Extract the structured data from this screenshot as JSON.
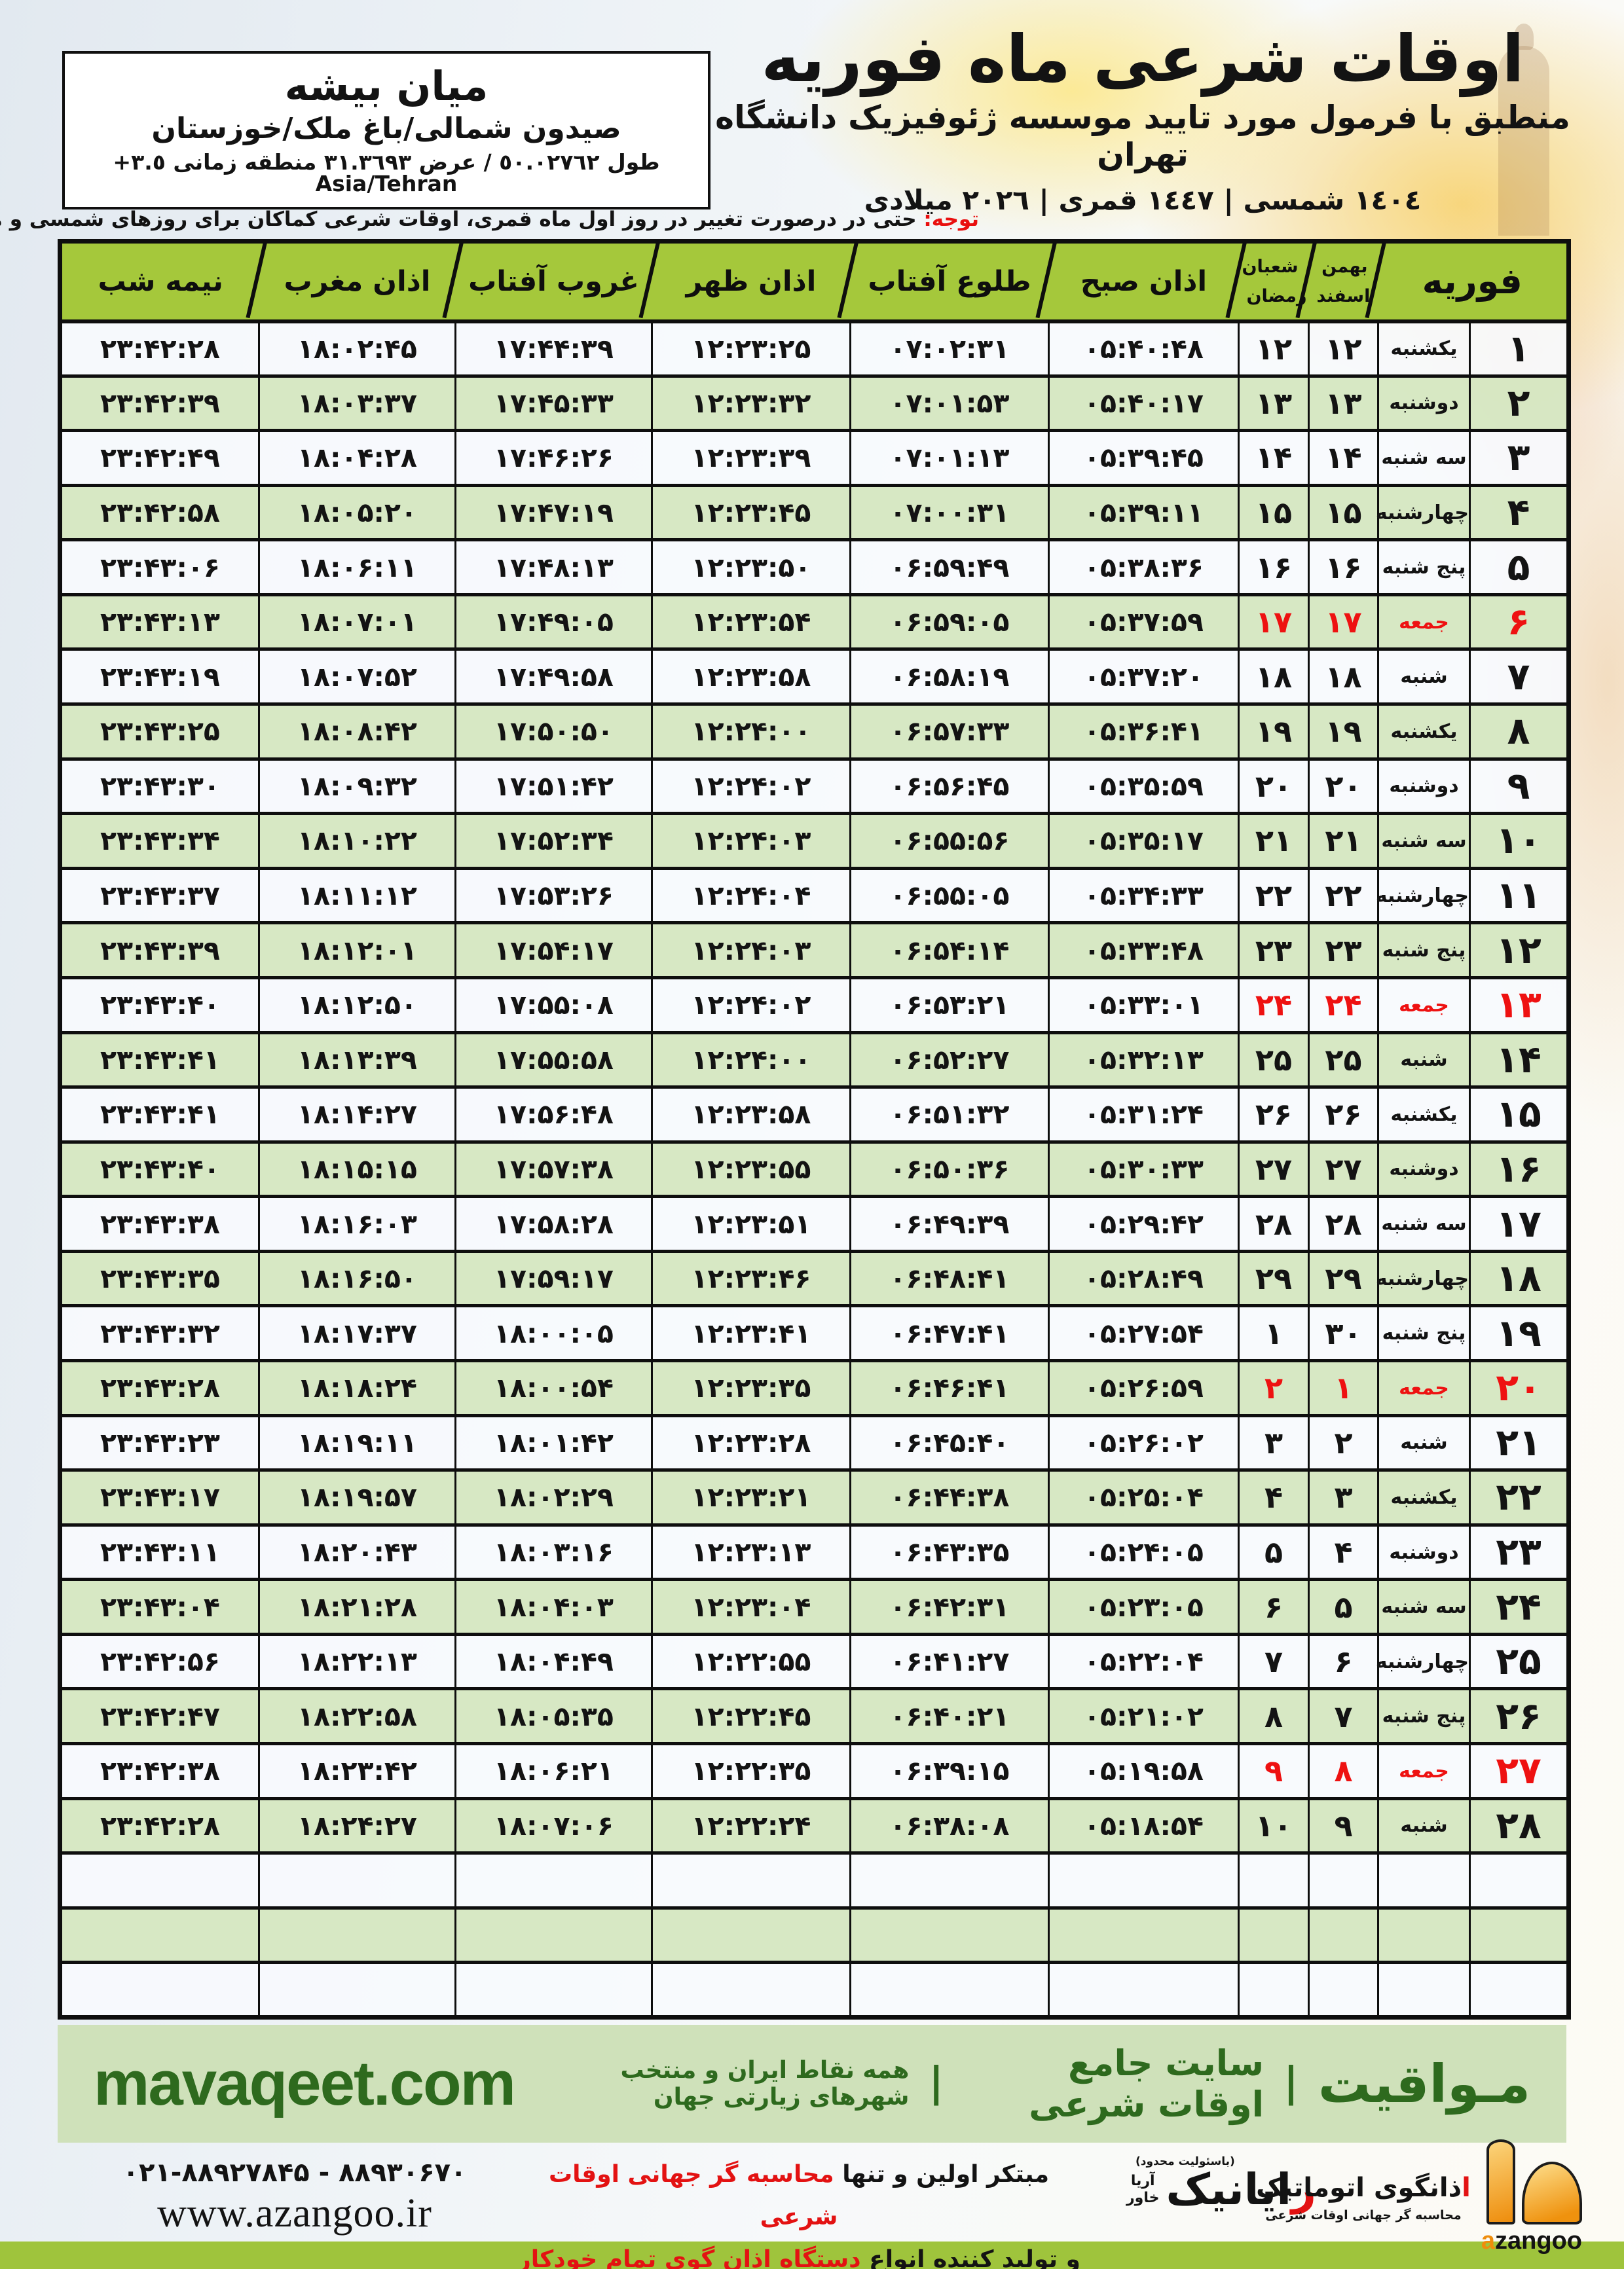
{
  "colors": {
    "header_green": "#a5c83b",
    "row_green": "#d6e7c2",
    "row_light": "#f7fafd",
    "friday_red": "#ee1111",
    "band_green_bg": "#cfe1ba",
    "band_green_text": "#2e6a1e",
    "bottom_bar_green": "#9fc43c",
    "logo_orange": "#ee8d0c"
  },
  "location_box": {
    "city": "میان بیشه",
    "region": "صیدون شمالی/باغ ملک/خوزستان",
    "coords": "طول ٥٠.٠٢٧٦٢ / عرض ٣١.٣٦٩٣ منطقه زمانی ٣.٥+ Asia/Tehran"
  },
  "title_block": {
    "title": "اوقات شرعی ماه فوریه",
    "subtitle": "منطبق با فرمول مورد تایید موسسه ژئوفیزیک دانشگاه تهران",
    "years": "١٤٠٤ شمسی | ١٤٤٧ قمری | ٢٠٢٦ میلادی"
  },
  "note": {
    "label": "توجه:",
    "text": " حتی در درصورت تغییر در روز اول ماه قمری، اوقات شرعی کماکان برای روزهای شمسی و میلادی معتبر است."
  },
  "table": {
    "headers": {
      "february": "فوریه",
      "jalali_top": "بهمن",
      "jalali_bottom": "اسفند",
      "hijri_top": "شعبان",
      "hijri_bottom": "رمضان",
      "fajr": "اذان صبح",
      "sunrise": "طلوع آفتاب",
      "dhuhr": "اذان ظهر",
      "sunset": "غروب آفتاب",
      "maghrib": "اذان مغرب",
      "midnight": "نیمه شب"
    },
    "empty_rows": 3,
    "rows": [
      {
        "day": 1,
        "weekday": "یکشنبه",
        "jalali_day": 12,
        "hijri_day": 12,
        "friday": false,
        "fajr": "05:40:48",
        "sunrise": "07:02:31",
        "dhuhr": "12:23:25",
        "sunset": "17:44:39",
        "maghrib": "18:02:45",
        "midnight": "23:42:28"
      },
      {
        "day": 2,
        "weekday": "دوشنبه",
        "jalali_day": 13,
        "hijri_day": 13,
        "friday": false,
        "fajr": "05:40:17",
        "sunrise": "07:01:53",
        "dhuhr": "12:23:32",
        "sunset": "17:45:33",
        "maghrib": "18:03:37",
        "midnight": "23:42:39"
      },
      {
        "day": 3,
        "weekday": "سه شنبه",
        "jalali_day": 14,
        "hijri_day": 14,
        "friday": false,
        "fajr": "05:39:45",
        "sunrise": "07:01:13",
        "dhuhr": "12:23:39",
        "sunset": "17:46:26",
        "maghrib": "18:04:28",
        "midnight": "23:42:49"
      },
      {
        "day": 4,
        "weekday": "چهارشنبه",
        "jalali_day": 15,
        "hijri_day": 15,
        "friday": false,
        "fajr": "05:39:11",
        "sunrise": "07:00:31",
        "dhuhr": "12:23:45",
        "sunset": "17:47:19",
        "maghrib": "18:05:20",
        "midnight": "23:42:58"
      },
      {
        "day": 5,
        "weekday": "پنج شنبه",
        "jalali_day": 16,
        "hijri_day": 16,
        "friday": false,
        "fajr": "05:38:36",
        "sunrise": "06:59:49",
        "dhuhr": "12:23:50",
        "sunset": "17:48:13",
        "maghrib": "18:06:11",
        "midnight": "23:43:06"
      },
      {
        "day": 6,
        "weekday": "جمعه",
        "jalali_day": 17,
        "hijri_day": 17,
        "friday": true,
        "fajr": "05:37:59",
        "sunrise": "06:59:05",
        "dhuhr": "12:23:54",
        "sunset": "17:49:05",
        "maghrib": "18:07:01",
        "midnight": "23:43:13"
      },
      {
        "day": 7,
        "weekday": "شنبه",
        "jalali_day": 18,
        "hijri_day": 18,
        "friday": false,
        "fajr": "05:37:20",
        "sunrise": "06:58:19",
        "dhuhr": "12:23:58",
        "sunset": "17:49:58",
        "maghrib": "18:07:52",
        "midnight": "23:43:19"
      },
      {
        "day": 8,
        "weekday": "یکشنبه",
        "jalali_day": 19,
        "hijri_day": 19,
        "friday": false,
        "fajr": "05:36:41",
        "sunrise": "06:57:33",
        "dhuhr": "12:24:00",
        "sunset": "17:50:50",
        "maghrib": "18:08:42",
        "midnight": "23:43:25"
      },
      {
        "day": 9,
        "weekday": "دوشنبه",
        "jalali_day": 20,
        "hijri_day": 20,
        "friday": false,
        "fajr": "05:35:59",
        "sunrise": "06:56:45",
        "dhuhr": "12:24:02",
        "sunset": "17:51:42",
        "maghrib": "18:09:32",
        "midnight": "23:43:30"
      },
      {
        "day": 10,
        "weekday": "سه شنبه",
        "jalali_day": 21,
        "hijri_day": 21,
        "friday": false,
        "fajr": "05:35:17",
        "sunrise": "06:55:56",
        "dhuhr": "12:24:03",
        "sunset": "17:52:34",
        "maghrib": "18:10:22",
        "midnight": "23:43:34"
      },
      {
        "day": 11,
        "weekday": "چهارشنبه",
        "jalali_day": 22,
        "hijri_day": 22,
        "friday": false,
        "fajr": "05:34:33",
        "sunrise": "06:55:05",
        "dhuhr": "12:24:04",
        "sunset": "17:53:26",
        "maghrib": "18:11:12",
        "midnight": "23:43:37"
      },
      {
        "day": 12,
        "weekday": "پنج شنبه",
        "jalali_day": 23,
        "hijri_day": 23,
        "friday": false,
        "fajr": "05:33:48",
        "sunrise": "06:54:14",
        "dhuhr": "12:24:03",
        "sunset": "17:54:17",
        "maghrib": "18:12:01",
        "midnight": "23:43:39"
      },
      {
        "day": 13,
        "weekday": "جمعه",
        "jalali_day": 24,
        "hijri_day": 24,
        "friday": true,
        "fajr": "05:33:01",
        "sunrise": "06:53:21",
        "dhuhr": "12:24:02",
        "sunset": "17:55:08",
        "maghrib": "18:12:50",
        "midnight": "23:43:40"
      },
      {
        "day": 14,
        "weekday": "شنبه",
        "jalali_day": 25,
        "hijri_day": 25,
        "friday": false,
        "fajr": "05:32:13",
        "sunrise": "06:52:27",
        "dhuhr": "12:24:00",
        "sunset": "17:55:58",
        "maghrib": "18:13:39",
        "midnight": "23:43:41"
      },
      {
        "day": 15,
        "weekday": "یکشنبه",
        "jalali_day": 26,
        "hijri_day": 26,
        "friday": false,
        "fajr": "05:31:24",
        "sunrise": "06:51:32",
        "dhuhr": "12:23:58",
        "sunset": "17:56:48",
        "maghrib": "18:14:27",
        "midnight": "23:43:41"
      },
      {
        "day": 16,
        "weekday": "دوشنبه",
        "jalali_day": 27,
        "hijri_day": 27,
        "friday": false,
        "fajr": "05:30:33",
        "sunrise": "06:50:36",
        "dhuhr": "12:23:55",
        "sunset": "17:57:38",
        "maghrib": "18:15:15",
        "midnight": "23:43:40"
      },
      {
        "day": 17,
        "weekday": "سه شنبه",
        "jalali_day": 28,
        "hijri_day": 28,
        "friday": false,
        "fajr": "05:29:42",
        "sunrise": "06:49:39",
        "dhuhr": "12:23:51",
        "sunset": "17:58:28",
        "maghrib": "18:16:03",
        "midnight": "23:43:38"
      },
      {
        "day": 18,
        "weekday": "چهارشنبه",
        "jalali_day": 29,
        "hijri_day": 29,
        "friday": false,
        "fajr": "05:28:49",
        "sunrise": "06:48:41",
        "dhuhr": "12:23:46",
        "sunset": "17:59:17",
        "maghrib": "18:16:50",
        "midnight": "23:43:35"
      },
      {
        "day": 19,
        "weekday": "پنج شنبه",
        "jalali_day": 30,
        "hijri_day": 1,
        "friday": false,
        "fajr": "05:27:54",
        "sunrise": "06:47:41",
        "dhuhr": "12:23:41",
        "sunset": "18:00:05",
        "maghrib": "18:17:37",
        "midnight": "23:43:32"
      },
      {
        "day": 20,
        "weekday": "جمعه",
        "jalali_day": 1,
        "hijri_day": 2,
        "friday": true,
        "fajr": "05:26:59",
        "sunrise": "06:46:41",
        "dhuhr": "12:23:35",
        "sunset": "18:00:54",
        "maghrib": "18:18:24",
        "midnight": "23:43:28"
      },
      {
        "day": 21,
        "weekday": "شنبه",
        "jalali_day": 2,
        "hijri_day": 3,
        "friday": false,
        "fajr": "05:26:02",
        "sunrise": "06:45:40",
        "dhuhr": "12:23:28",
        "sunset": "18:01:42",
        "maghrib": "18:19:11",
        "midnight": "23:43:23"
      },
      {
        "day": 22,
        "weekday": "یکشنبه",
        "jalali_day": 3,
        "hijri_day": 4,
        "friday": false,
        "fajr": "05:25:04",
        "sunrise": "06:44:38",
        "dhuhr": "12:23:21",
        "sunset": "18:02:29",
        "maghrib": "18:19:57",
        "midnight": "23:43:17"
      },
      {
        "day": 23,
        "weekday": "دوشنبه",
        "jalali_day": 4,
        "hijri_day": 5,
        "friday": false,
        "fajr": "05:24:05",
        "sunrise": "06:43:35",
        "dhuhr": "12:23:13",
        "sunset": "18:03:16",
        "maghrib": "18:20:43",
        "midnight": "23:43:11"
      },
      {
        "day": 24,
        "weekday": "سه شنبه",
        "jalali_day": 5,
        "hijri_day": 6,
        "friday": false,
        "fajr": "05:23:05",
        "sunrise": "06:42:31",
        "dhuhr": "12:23:04",
        "sunset": "18:04:03",
        "maghrib": "18:21:28",
        "midnight": "23:43:04"
      },
      {
        "day": 25,
        "weekday": "چهارشنبه",
        "jalali_day": 6,
        "hijri_day": 7,
        "friday": false,
        "fajr": "05:22:04",
        "sunrise": "06:41:27",
        "dhuhr": "12:22:55",
        "sunset": "18:04:49",
        "maghrib": "18:22:13",
        "midnight": "23:42:56"
      },
      {
        "day": 26,
        "weekday": "پنج شنبه",
        "jalali_day": 7,
        "hijri_day": 8,
        "friday": false,
        "fajr": "05:21:02",
        "sunrise": "06:40:21",
        "dhuhr": "12:22:45",
        "sunset": "18:05:35",
        "maghrib": "18:22:58",
        "midnight": "23:42:47"
      },
      {
        "day": 27,
        "weekday": "جمعه",
        "jalali_day": 8,
        "hijri_day": 9,
        "friday": true,
        "fajr": "05:19:58",
        "sunrise": "06:39:15",
        "dhuhr": "12:22:35",
        "sunset": "18:06:21",
        "maghrib": "18:23:42",
        "midnight": "23:42:38"
      },
      {
        "day": 28,
        "weekday": "شنبه",
        "jalali_day": 9,
        "hijri_day": 10,
        "friday": false,
        "fajr": "05:18:54",
        "sunrise": "06:38:08",
        "dhuhr": "12:22:24",
        "sunset": "18:07:06",
        "maghrib": "18:24:27",
        "midnight": "23:42:28"
      }
    ]
  },
  "footer_band": {
    "brand_fa": "مـواقیت",
    "separator": "|",
    "tagline1": "سایت جامع اوقات شرعی",
    "tagline2": "همه نقاط ایران و منتخب شهرهای زیارتی جهان",
    "site": "mavaqeet.com"
  },
  "bottom_strip": {
    "phone": "021-88927845 - 88930670",
    "website": "www.azangoo.ir",
    "line1_black": "مبتکر اولین و تنها ",
    "line1_red": "محاسبه گر جهانی اوقات شرعی",
    "line2_black": "و تولید کننده انواع ",
    "line2_red": "دستگاه اذان گوی تمام خودکار ماهواره ای",
    "rayanik_note": "(باسئولیت محدود)",
    "rayanik_first": "ر",
    "rayanik_rest": "ایانیک",
    "rayanik_sub1": "آریا",
    "rayanik_sub2": "خاور",
    "azangoo_fa_first": "ا",
    "azangoo_fa_rest": "ذانگوی اتوماتیک",
    "azangoo_sub": "محاسبه گر جهانی اوقات شرعی",
    "azangoo_latin_first": "a",
    "azangoo_latin_rest": "zangoo"
  }
}
